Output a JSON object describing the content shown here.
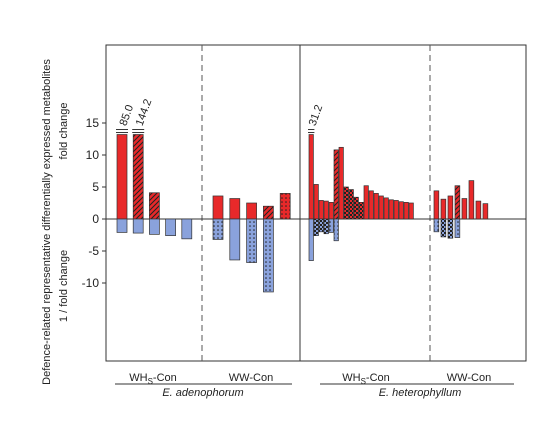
{
  "chart_data": {
    "type": "bar",
    "ylabel": "Defence-related representative differentially expressed metabolites",
    "ylabel_positive": "fold change",
    "ylabel_negative": "1 / fold change",
    "ylim": [
      -15,
      17.5
    ],
    "yticks": [
      -10,
      -5,
      0,
      5,
      10,
      15
    ],
    "tick_labels": [
      "-10",
      "-5",
      "0",
      "5",
      "10",
      "15"
    ],
    "grid": false,
    "colors": {
      "up": "#e8292a",
      "down": "#8aa2dc",
      "edge": "#333333"
    },
    "panels": [
      {
        "species": "E. adenophorum",
        "groups": [
          {
            "label_main": "WH",
            "label_sub": "S",
            "label_tail": "-Con",
            "up": [
              {
                "v": 13.2,
                "p": "none",
                "label": "85.0"
              },
              {
                "v": 13.2,
                "p": "hatch",
                "label": "144.2"
              },
              {
                "v": 4.1,
                "p": "hatch"
              }
            ],
            "down": [
              {
                "v": -2.1,
                "p": "none"
              },
              {
                "v": -2.2,
                "p": "none"
              },
              {
                "v": -2.4,
                "p": "none"
              },
              {
                "v": -2.6,
                "p": "none"
              },
              {
                "v": -3.1,
                "p": "none"
              }
            ]
          },
          {
            "label_main": "WW-Con",
            "label_sub": "",
            "label_tail": "",
            "up": [
              {
                "v": 3.6,
                "p": "none"
              },
              {
                "v": 3.2,
                "p": "none"
              },
              {
                "v": 2.5,
                "p": "none"
              },
              {
                "v": 2.0,
                "p": "hatch"
              },
              {
                "v": 4.0,
                "p": "dots"
              }
            ],
            "down": [
              {
                "v": -3.2,
                "p": "dots"
              },
              {
                "v": -6.4,
                "p": "none"
              },
              {
                "v": -6.8,
                "p": "dots"
              },
              {
                "v": -11.4,
                "p": "dots"
              }
            ]
          }
        ]
      },
      {
        "species": "E. heterophyllum",
        "groups": [
          {
            "label_main": "WH",
            "label_sub": "S",
            "label_tail": "-Con",
            "up": [
              {
                "v": 13.2,
                "p": "none",
                "label": "31.2"
              },
              {
                "v": 5.4,
                "p": "none"
              },
              {
                "v": 2.9,
                "p": "none"
              },
              {
                "v": 2.8,
                "p": "none"
              },
              {
                "v": 2.6,
                "p": "none"
              },
              {
                "v": 10.8,
                "p": "hatch"
              },
              {
                "v": 11.2,
                "p": "none"
              },
              {
                "v": 5.0,
                "p": "grid"
              },
              {
                "v": 4.6,
                "p": "grid"
              },
              {
                "v": 3.4,
                "p": "grid"
              },
              {
                "v": 2.6,
                "p": "grid"
              },
              {
                "v": 5.2,
                "p": "none"
              },
              {
                "v": 4.4,
                "p": "none"
              },
              {
                "v": 4.0,
                "p": "none"
              },
              {
                "v": 3.6,
                "p": "none"
              },
              {
                "v": 3.3,
                "p": "none"
              },
              {
                "v": 3.0,
                "p": "none"
              },
              {
                "v": 2.9,
                "p": "none"
              },
              {
                "v": 2.7,
                "p": "none"
              },
              {
                "v": 2.6,
                "p": "none"
              },
              {
                "v": 2.5,
                "p": "none"
              }
            ],
            "down": [
              {
                "v": -6.5,
                "p": "none"
              },
              {
                "v": -2.6,
                "p": "grid"
              },
              {
                "v": -2.0,
                "p": "grid"
              },
              {
                "v": -2.3,
                "p": "grid"
              },
              {
                "v": -2.1,
                "p": "dots"
              },
              {
                "v": -3.4,
                "p": "dots"
              }
            ]
          },
          {
            "label_main": "WW-Con",
            "label_sub": "",
            "label_tail": "",
            "up": [
              {
                "v": 4.4,
                "p": "none"
              },
              {
                "v": 3.1,
                "p": "none"
              },
              {
                "v": 3.6,
                "p": "none"
              },
              {
                "v": 5.2,
                "p": "hatch"
              },
              {
                "v": 3.2,
                "p": "none"
              },
              {
                "v": 6.0,
                "p": "none"
              },
              {
                "v": 2.8,
                "p": "none"
              },
              {
                "v": 2.4,
                "p": "none"
              }
            ],
            "down": [
              {
                "v": -2.0,
                "p": "dots"
              },
              {
                "v": -2.8,
                "p": "grid"
              },
              {
                "v": -3.0,
                "p": "grid"
              },
              {
                "v": -2.9,
                "p": "dots"
              }
            ]
          }
        ]
      }
    ]
  }
}
